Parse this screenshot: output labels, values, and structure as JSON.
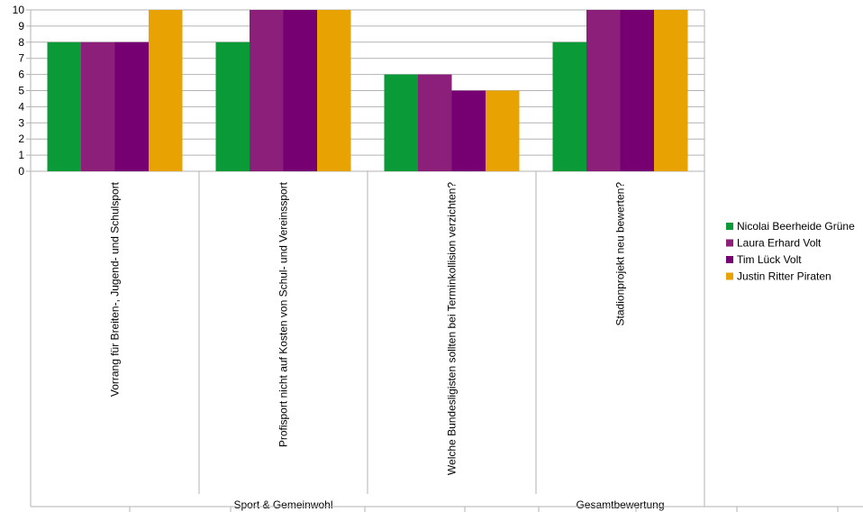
{
  "chart_data": {
    "type": "bar",
    "categories": [
      "Vorrang für Breiten-, Jugend- und Schulsport",
      "Profisport nicht auf Kosten von Schul- und Vereinssport",
      "Welche Bundesligisten sollten bei Terminkollision verzichten?",
      "Stadionprojekt neu bewerten?"
    ],
    "groups": [
      {
        "label": "Sport & Gemeinwohl",
        "categories": [
          0,
          1,
          2
        ]
      },
      {
        "label": "Gesamtbewertung",
        "categories": [
          3
        ]
      }
    ],
    "series": [
      {
        "name": "Nicolai Beerheide Grüne",
        "color": "#0b9a38",
        "values": [
          8,
          8,
          6,
          8
        ]
      },
      {
        "name": "Laura Erhard Volt",
        "color": "#8b1f79",
        "values": [
          8,
          10,
          6,
          10
        ]
      },
      {
        "name": "Tim Lück Volt",
        "color": "#760072",
        "values": [
          8,
          10,
          5,
          10
        ]
      },
      {
        "name": "Justin Ritter Piraten",
        "color": "#e8a202",
        "values": [
          10,
          10,
          5,
          10
        ]
      }
    ],
    "yticks": [
      0,
      1,
      2,
      3,
      4,
      5,
      6,
      7,
      8,
      9,
      10
    ],
    "ylim": [
      0,
      10
    ],
    "grid": true,
    "legend": "right"
  }
}
